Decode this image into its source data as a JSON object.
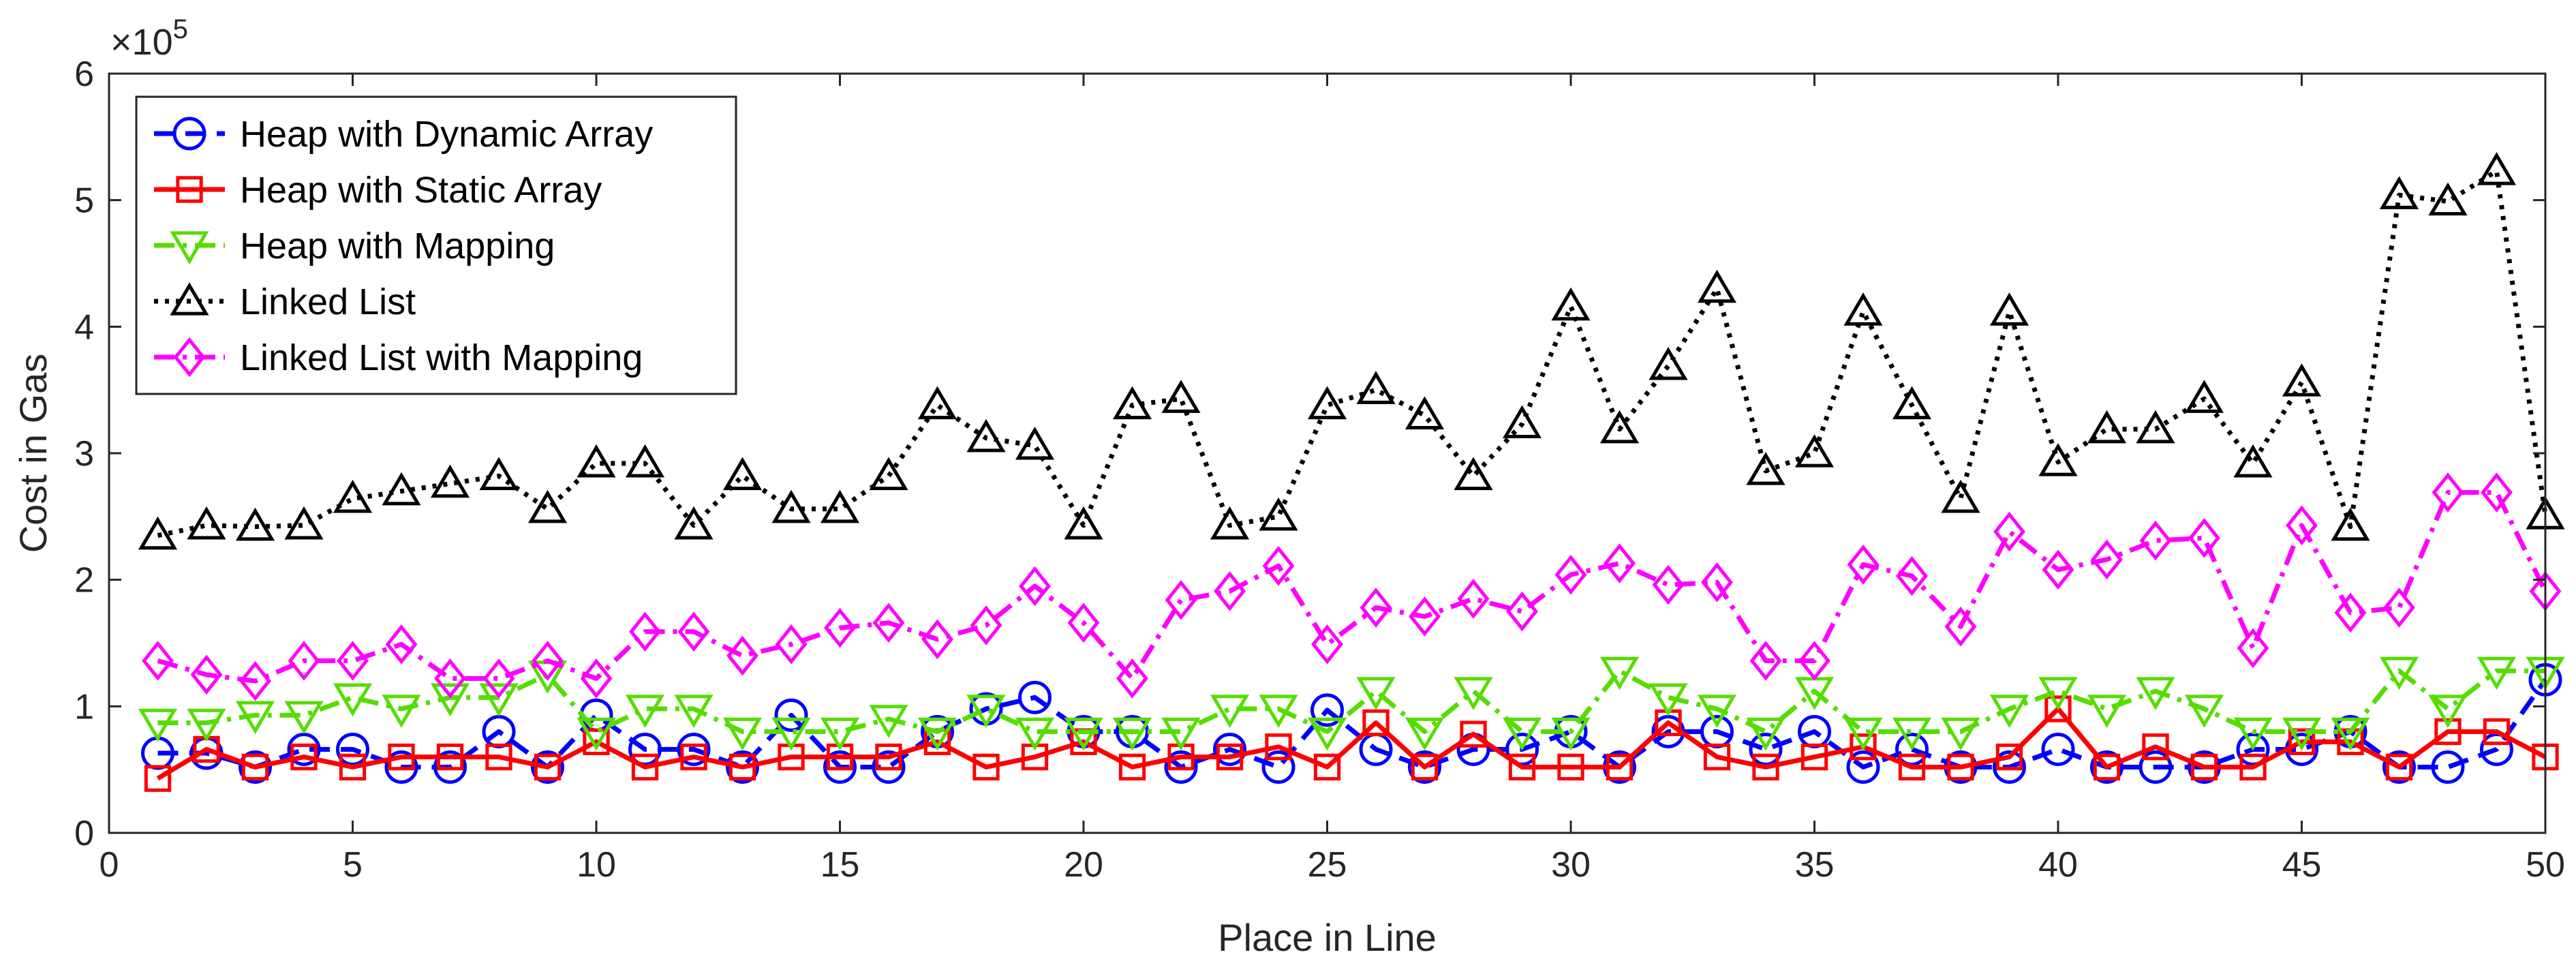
{
  "chart_data": {
    "type": "line",
    "xlabel": "Place in Line",
    "ylabel": "Cost in Gas",
    "exponent_label": "×10",
    "exponent_power": "5",
    "xlim": [
      0,
      50
    ],
    "ylim": [
      0,
      6
    ],
    "xticks": [
      0,
      5,
      10,
      15,
      20,
      25,
      30,
      35,
      40,
      45,
      50
    ],
    "yticks": [
      0,
      1,
      2,
      3,
      4,
      5,
      6
    ],
    "grid": false,
    "legend_position": "top-left",
    "x": [
      1,
      2,
      3,
      4,
      5,
      6,
      7,
      8,
      9,
      10,
      11,
      12,
      13,
      14,
      15,
      16,
      17,
      18,
      19,
      20,
      21,
      22,
      23,
      24,
      25,
      26,
      27,
      28,
      29,
      30,
      31,
      32,
      33,
      34,
      35,
      36,
      37,
      38,
      39,
      40,
      41,
      42,
      43,
      44,
      45,
      46,
      47,
      48,
      49,
      50
    ],
    "series": [
      {
        "name": "Heap with Dynamic Array",
        "color": "#0000ff",
        "line_style": "dash",
        "marker": "circle",
        "values": [
          0.63,
          0.63,
          0.52,
          0.66,
          0.66,
          0.52,
          0.52,
          0.8,
          0.52,
          0.93,
          0.66,
          0.66,
          0.52,
          0.93,
          0.52,
          0.52,
          0.8,
          0.98,
          1.07,
          0.8,
          0.8,
          0.52,
          0.66,
          0.52,
          0.97,
          0.66,
          0.52,
          0.66,
          0.66,
          0.8,
          0.52,
          0.8,
          0.8,
          0.66,
          0.8,
          0.52,
          0.66,
          0.52,
          0.52,
          0.66,
          0.52,
          0.52,
          0.52,
          0.66,
          0.66,
          0.8,
          0.52,
          0.52,
          0.66,
          1.21
        ]
      },
      {
        "name": "Heap with Static Array",
        "color": "#ff0000",
        "line_style": "solid",
        "marker": "square",
        "values": [
          0.43,
          0.66,
          0.52,
          0.6,
          0.52,
          0.6,
          0.6,
          0.6,
          0.52,
          0.72,
          0.52,
          0.6,
          0.52,
          0.6,
          0.6,
          0.6,
          0.72,
          0.52,
          0.6,
          0.72,
          0.52,
          0.6,
          0.6,
          0.68,
          0.52,
          0.87,
          0.52,
          0.78,
          0.52,
          0.52,
          0.52,
          0.87,
          0.6,
          0.52,
          0.6,
          0.68,
          0.52,
          0.52,
          0.6,
          0.98,
          0.52,
          0.68,
          0.52,
          0.52,
          0.72,
          0.72,
          0.52,
          0.8,
          0.8,
          0.6
        ]
      },
      {
        "name": "Heap with Mapping",
        "color": "#55dd00",
        "line_style": "dashdot",
        "marker": "triangle-down",
        "values": [
          0.87,
          0.87,
          0.93,
          0.93,
          1.07,
          0.98,
          1.07,
          1.07,
          1.25,
          0.8,
          0.98,
          0.98,
          0.8,
          0.8,
          0.8,
          0.9,
          0.8,
          0.98,
          0.8,
          0.8,
          0.8,
          0.8,
          0.98,
          0.98,
          0.8,
          1.12,
          0.8,
          1.12,
          0.8,
          0.8,
          1.28,
          1.07,
          0.98,
          0.8,
          1.12,
          0.8,
          0.8,
          0.8,
          0.98,
          1.12,
          0.98,
          1.12,
          0.98,
          0.8,
          0.8,
          0.8,
          1.28,
          0.98,
          1.28,
          1.28
        ]
      },
      {
        "name": "Linked List",
        "color": "#000000",
        "line_style": "dot",
        "marker": "triangle-up",
        "values": [
          2.35,
          2.43,
          2.42,
          2.43,
          2.64,
          2.7,
          2.76,
          2.82,
          2.56,
          2.92,
          2.92,
          2.43,
          2.82,
          2.56,
          2.56,
          2.82,
          3.38,
          3.12,
          3.06,
          2.43,
          3.38,
          3.43,
          2.43,
          2.5,
          3.38,
          3.5,
          3.3,
          2.82,
          3.23,
          4.16,
          3.19,
          3.69,
          4.3,
          2.86,
          3.0,
          4.12,
          3.38,
          2.64,
          4.12,
          2.93,
          3.19,
          3.19,
          3.43,
          2.92,
          3.56,
          2.42,
          5.04,
          4.99,
          5.23,
          2.51
        ]
      },
      {
        "name": "Linked List with Mapping",
        "color": "#ff00ff",
        "line_style": "dashdot",
        "marker": "diamond",
        "values": [
          1.36,
          1.25,
          1.2,
          1.36,
          1.36,
          1.49,
          1.22,
          1.22,
          1.36,
          1.22,
          1.59,
          1.59,
          1.4,
          1.49,
          1.62,
          1.66,
          1.53,
          1.64,
          1.95,
          1.66,
          1.22,
          1.84,
          1.91,
          2.11,
          1.49,
          1.78,
          1.71,
          1.85,
          1.75,
          2.04,
          2.13,
          1.96,
          1.98,
          1.36,
          1.36,
          2.12,
          2.03,
          1.63,
          2.38,
          2.08,
          2.16,
          2.31,
          2.33,
          1.46,
          2.43,
          1.74,
          1.78,
          2.69,
          2.69,
          1.91
        ]
      }
    ]
  }
}
